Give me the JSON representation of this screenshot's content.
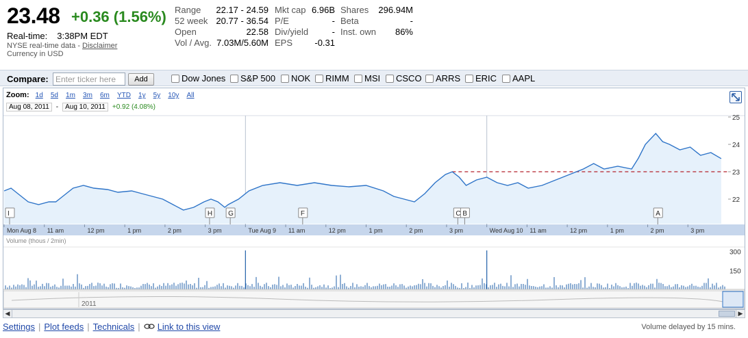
{
  "quote": {
    "price": "23.48",
    "change": "+0.36 (1.56%)",
    "realtime_label": "Real-time:",
    "realtime_time": "3:38PM EDT",
    "source": "NYSE real-time data - ",
    "disclaimer": "Disclaimer",
    "currency": "Currency in USD"
  },
  "stats": {
    "col1": [
      {
        "k": "Range",
        "v": "22.17 - 24.59"
      },
      {
        "k": "52 week",
        "v": "20.77 - 36.54"
      },
      {
        "k": "Open",
        "v": "22.58"
      },
      {
        "k": "Vol / Avg.",
        "v": "7.03M/5.60M"
      }
    ],
    "col2": [
      {
        "k": "Mkt cap",
        "v": "6.96B"
      },
      {
        "k": "P/E",
        "v": "-"
      },
      {
        "k": "Div/yield",
        "v": "-"
      },
      {
        "k": "EPS",
        "v": "-0.31"
      }
    ],
    "col3": [
      {
        "k": "Shares",
        "v": "296.94M"
      },
      {
        "k": "Beta",
        "v": "-"
      },
      {
        "k": "Inst. own",
        "v": "86%"
      }
    ]
  },
  "compare": {
    "label": "Compare:",
    "placeholder": "Enter ticker here",
    "add_label": "Add",
    "tickers": [
      "Dow Jones",
      "S&P 500",
      "NOK",
      "RIMM",
      "MSI",
      "CSCO",
      "ARRS",
      "ERIC",
      "AAPL"
    ]
  },
  "zoom": {
    "label": "Zoom:",
    "options": [
      "1d",
      "5d",
      "1m",
      "3m",
      "6m",
      "YTD",
      "1y",
      "5y",
      "10y",
      "All"
    ],
    "from_date": "Aug 08, 2011",
    "dash": "-",
    "to_date": "Aug 10, 2011",
    "range_change": "+0.92 (4.08%)"
  },
  "chart_data": {
    "type": "line",
    "title": "",
    "x_tick_labels": [
      "Mon Aug 8",
      "11 am",
      "12 pm",
      "1 pm",
      "2 pm",
      "3 pm",
      "Tue Aug 9",
      "11 am",
      "12 pm",
      "1 pm",
      "2 pm",
      "3 pm",
      "Wed Aug 10",
      "11 am",
      "12 pm",
      "1 pm",
      "2 pm",
      "3 pm"
    ],
    "y_tick_labels": [
      "22",
      "23",
      "24",
      "25"
    ],
    "ylim": [
      21.1,
      25.05
    ],
    "previous_close": 23.0,
    "x_domain": [
      0,
      21
    ],
    "price_points": [
      [
        0.0,
        22.3
      ],
      [
        0.2,
        22.4
      ],
      [
        0.4,
        22.2
      ],
      [
        0.7,
        21.9
      ],
      [
        1.0,
        21.8
      ],
      [
        1.3,
        21.9
      ],
      [
        1.5,
        21.9
      ],
      [
        1.7,
        22.1
      ],
      [
        2.0,
        22.4
      ],
      [
        2.3,
        22.5
      ],
      [
        2.6,
        22.4
      ],
      [
        3.0,
        22.35
      ],
      [
        3.3,
        22.25
      ],
      [
        3.7,
        22.3
      ],
      [
        4.0,
        22.2
      ],
      [
        4.3,
        22.1
      ],
      [
        4.6,
        22.0
      ],
      [
        4.9,
        21.8
      ],
      [
        5.2,
        21.6
      ],
      [
        5.5,
        21.7
      ],
      [
        5.8,
        21.9
      ],
      [
        6.0,
        22.0
      ],
      [
        6.2,
        21.9
      ],
      [
        6.4,
        21.7
      ],
      [
        6.5,
        21.8
      ],
      [
        6.8,
        22.0
      ],
      [
        7.1,
        22.3
      ],
      [
        7.5,
        22.5
      ],
      [
        8.0,
        22.6
      ],
      [
        8.5,
        22.5
      ],
      [
        9.0,
        22.6
      ],
      [
        9.5,
        22.5
      ],
      [
        10.0,
        22.45
      ],
      [
        10.5,
        22.5
      ],
      [
        11.0,
        22.3
      ],
      [
        11.3,
        22.1
      ],
      [
        11.6,
        22.0
      ],
      [
        11.9,
        21.9
      ],
      [
        12.2,
        22.2
      ],
      [
        12.5,
        22.6
      ],
      [
        12.8,
        22.9
      ],
      [
        13.0,
        23.0
      ],
      [
        13.2,
        22.8
      ],
      [
        13.4,
        22.5
      ],
      [
        13.7,
        22.7
      ],
      [
        14.0,
        22.8
      ],
      [
        14.3,
        22.6
      ],
      [
        14.6,
        22.5
      ],
      [
        14.9,
        22.6
      ],
      [
        15.2,
        22.4
      ],
      [
        15.6,
        22.5
      ],
      [
        16.0,
        22.7
      ],
      [
        16.4,
        22.9
      ],
      [
        16.8,
        23.1
      ],
      [
        17.1,
        23.3
      ],
      [
        17.4,
        23.1
      ],
      [
        17.8,
        23.2
      ],
      [
        18.2,
        23.1
      ],
      [
        18.4,
        23.5
      ],
      [
        18.6,
        24.0
      ],
      [
        18.9,
        24.4
      ],
      [
        19.1,
        24.1
      ],
      [
        19.3,
        24.0
      ],
      [
        19.6,
        23.8
      ],
      [
        19.9,
        23.9
      ],
      [
        20.2,
        23.6
      ],
      [
        20.5,
        23.7
      ],
      [
        20.8,
        23.48
      ]
    ],
    "event_flags": [
      {
        "label": "I",
        "x": 0.0
      },
      {
        "label": "H",
        "x": 5.8
      },
      {
        "label": "G",
        "x": 6.4
      },
      {
        "label": "F",
        "x": 8.5
      },
      {
        "label": "C",
        "x": 13.0
      },
      {
        "label": "B",
        "x": 13.2
      },
      {
        "label": "A",
        "x": 18.8
      }
    ],
    "volume_label": "Volume (thous / 2min)",
    "volume_y_tick_labels": [
      "150",
      "300"
    ],
    "volume_ylim": [
      0,
      320
    ],
    "navigator_year": "2011"
  },
  "colors": {
    "price_line": "#2e74c8",
    "price_fill": "#e6f1fb",
    "prev_close": "#b5222b",
    "axis_band": "#c6d6ec",
    "volume_bar": "#1f5fa8"
  },
  "footer": {
    "links": [
      "Settings",
      "Plot feeds",
      "Technicals",
      "Link to this view"
    ],
    "note": "Volume delayed by 15 mins."
  }
}
